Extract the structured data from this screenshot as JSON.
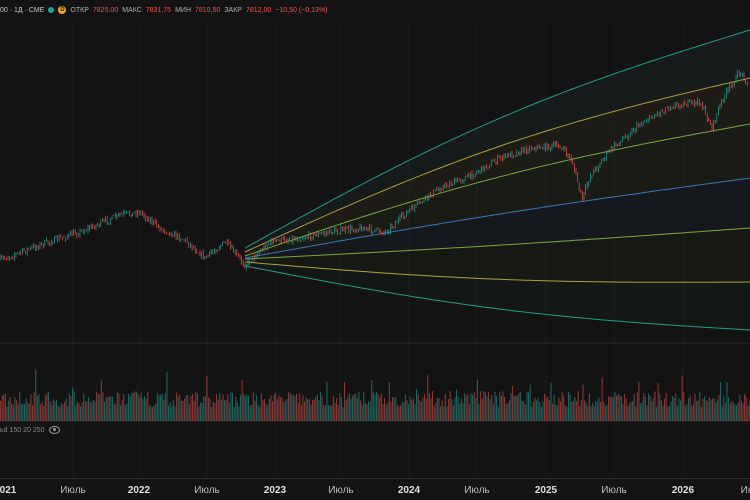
{
  "legend": {
    "symbol_tail": "00 · 1Д · CME",
    "dot_color": "#26a69a",
    "badge_letter": "D",
    "open_label": "ОТКР",
    "open_value": "7825,00",
    "high_label": "МАКС",
    "high_value": "7831,75",
    "low_label": "МИН",
    "low_value": "7810,50",
    "close_label": "ЗАКР",
    "close_value": "7812,00",
    "change": "−10,50 (−0,13%)"
  },
  "volume_legend": {
    "text": "ьd 150 20 250"
  },
  "x_axis": {
    "ticks": [
      {
        "label": "021",
        "year": true
      },
      {
        "label": "Июль",
        "year": false
      },
      {
        "label": "2022",
        "year": true
      },
      {
        "label": "Июль",
        "year": false
      },
      {
        "label": "2023",
        "year": true
      },
      {
        "label": "Июль",
        "year": false
      },
      {
        "label": "2024",
        "year": true
      },
      {
        "label": "Июль",
        "year": false
      },
      {
        "label": "2025",
        "year": true
      },
      {
        "label": "Июль",
        "year": false
      },
      {
        "label": "2026",
        "year": true
      },
      {
        "label": "Ию",
        "year": false
      }
    ]
  },
  "colors": {
    "up": "#26a69a",
    "down": "#ef5350",
    "band_outer": "#2bb39a",
    "band_yellow": "#c8b84a",
    "band_green": "#8dbd45",
    "band_mid": "#3f86d6"
  }
}
